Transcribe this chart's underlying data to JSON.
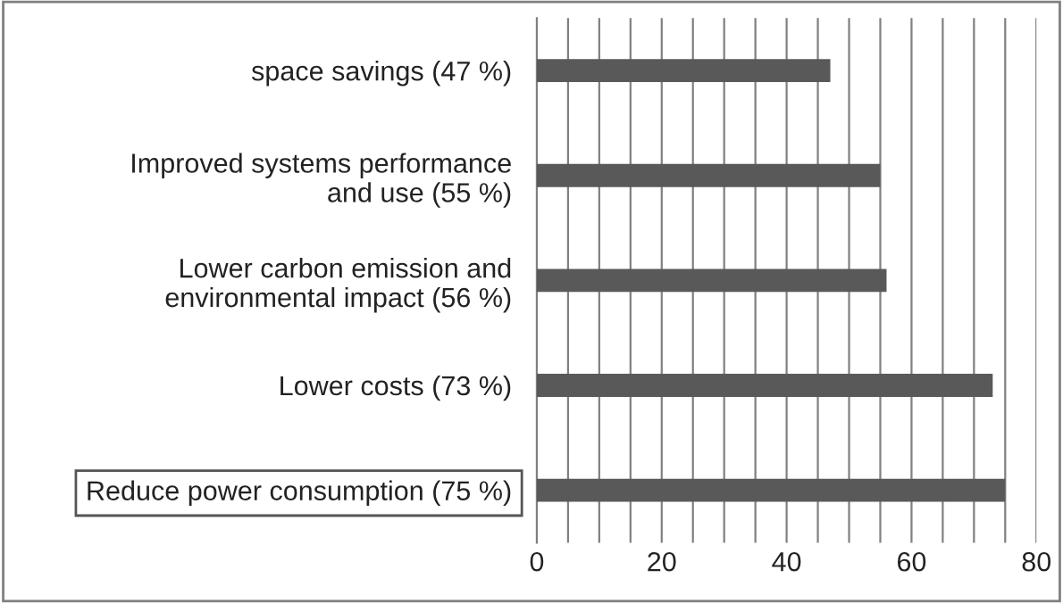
{
  "chart_data": {
    "type": "bar",
    "orientation": "horizontal",
    "categories": [
      "space savings (47 %)",
      "Improved systems performance\nand use (55 %)",
      "Lower carbon emission and\nenvironmental impact (56 %)",
      "Lower costs (73 %)",
      "Reduce power consumption (75 %)"
    ],
    "values": [
      47,
      55,
      56,
      73,
      75
    ],
    "color": "#595959",
    "xlim": [
      0,
      80
    ],
    "xticks": [
      0,
      {
        "value": 5,
        "label": null
      },
      {
        "value": 10,
        "label": null
      },
      {
        "value": 15,
        "label": null
      },
      20,
      {
        "value": 25,
        "label": null
      },
      {
        "value": 30,
        "label": null
      },
      {
        "value": 35,
        "label": null
      },
      40,
      {
        "value": 45,
        "label": null
      },
      {
        "value": 50,
        "label": null
      },
      {
        "value": 55,
        "label": null
      },
      60,
      {
        "value": 65,
        "label": null
      },
      {
        "value": 70,
        "label": null
      },
      {
        "value": 75,
        "label": null
      },
      80
    ],
    "grid": "x"
  }
}
